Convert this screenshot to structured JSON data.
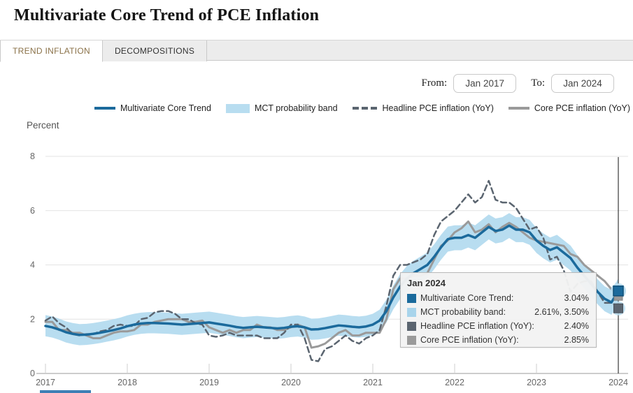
{
  "header": {
    "title": "Multivariate Core Trend of PCE Inflation"
  },
  "tabs": [
    {
      "label": "TREND INFLATION",
      "active": true
    },
    {
      "label": "DECOMPOSITIONS",
      "active": false
    }
  ],
  "controls": {
    "from_label": "From:",
    "from_value": "Jan 2017",
    "to_label": "To:",
    "to_value": "Jan 2024"
  },
  "legend": [
    {
      "label": "Multivariate Core Trend",
      "swatch": "solid-blue-line"
    },
    {
      "label": "MCT probability band",
      "swatch": "light-blue-band"
    },
    {
      "label": "Headline PCE inflation (YoY)",
      "swatch": "dashed-gray-line"
    },
    {
      "label": "Core PCE inflation (YoY)",
      "swatch": "solid-gray-line"
    }
  ],
  "colors": {
    "mct_line": "#1b6a9c",
    "band_fill": "#b8ddf0",
    "headline_line": "#5b6570",
    "core_line": "#9a9a9a",
    "active_tab_text": "#8a7148",
    "grid": "#e3e3e3",
    "axis": "#9a9a9a",
    "crosshair": "#111111"
  },
  "chart_data": {
    "type": "line",
    "title": "Multivariate Core Trend of PCE Inflation",
    "ylabel": "Percent",
    "xlabel": "",
    "ylim": [
      0,
      8
    ],
    "yticks": [
      0,
      2,
      4,
      6,
      8
    ],
    "xticks": [
      "2017",
      "2018",
      "2019",
      "2020",
      "2021",
      "2022",
      "2023",
      "2024"
    ],
    "frequency": "monthly",
    "x_start": "Jan 2017",
    "x_end": "Jan 2024",
    "grid": true,
    "legend_position": "top",
    "crosshair_at": "Jan 2024",
    "series": [
      {
        "name": "Multivariate Core Trend",
        "style": "line",
        "color": "#1b6a9c",
        "width": 3.5,
        "values": [
          1.75,
          1.7,
          1.62,
          1.52,
          1.46,
          1.42,
          1.43,
          1.46,
          1.5,
          1.55,
          1.6,
          1.66,
          1.74,
          1.8,
          1.84,
          1.86,
          1.86,
          1.85,
          1.84,
          1.82,
          1.8,
          1.82,
          1.84,
          1.86,
          1.88,
          1.84,
          1.8,
          1.76,
          1.71,
          1.68,
          1.7,
          1.72,
          1.7,
          1.68,
          1.66,
          1.68,
          1.72,
          1.74,
          1.7,
          1.62,
          1.63,
          1.67,
          1.72,
          1.77,
          1.75,
          1.72,
          1.7,
          1.73,
          1.8,
          1.95,
          2.3,
          2.8,
          3.2,
          3.5,
          3.7,
          3.85,
          4.0,
          4.3,
          4.65,
          4.95,
          5.0,
          5.0,
          5.1,
          5.0,
          5.2,
          5.4,
          5.25,
          5.3,
          5.45,
          5.3,
          5.3,
          5.2,
          4.9,
          4.7,
          4.55,
          4.65,
          4.45,
          4.25,
          3.9,
          3.6,
          3.3,
          3.0,
          2.75,
          2.62,
          3.04
        ]
      },
      {
        "name": "MCT probability band",
        "style": "band",
        "color": "#b8ddf0",
        "upper": [
          2.15,
          2.1,
          2.02,
          1.92,
          1.86,
          1.82,
          1.83,
          1.86,
          1.9,
          1.95,
          2.0,
          2.06,
          2.14,
          2.2,
          2.24,
          2.26,
          2.26,
          2.25,
          2.24,
          2.22,
          2.2,
          2.22,
          2.24,
          2.26,
          2.28,
          2.24,
          2.2,
          2.16,
          2.11,
          2.08,
          2.1,
          2.12,
          2.1,
          2.08,
          2.06,
          2.08,
          2.12,
          2.14,
          2.1,
          2.02,
          2.03,
          2.07,
          2.12,
          2.17,
          2.15,
          2.12,
          2.1,
          2.13,
          2.2,
          2.35,
          2.72,
          3.24,
          3.66,
          3.96,
          4.16,
          4.31,
          4.46,
          4.76,
          5.11,
          5.41,
          5.46,
          5.46,
          5.56,
          5.46,
          5.66,
          5.86,
          5.71,
          5.76,
          5.91,
          5.76,
          5.76,
          5.66,
          5.36,
          5.16,
          5.01,
          5.11,
          4.91,
          4.71,
          4.36,
          4.06,
          3.76,
          3.46,
          3.21,
          3.08,
          3.5
        ],
        "lower": [
          1.37,
          1.32,
          1.24,
          1.14,
          1.08,
          1.04,
          1.05,
          1.08,
          1.12,
          1.17,
          1.22,
          1.28,
          1.36,
          1.42,
          1.46,
          1.48,
          1.48,
          1.47,
          1.46,
          1.44,
          1.42,
          1.44,
          1.46,
          1.48,
          1.5,
          1.46,
          1.42,
          1.38,
          1.33,
          1.3,
          1.32,
          1.34,
          1.32,
          1.3,
          1.28,
          1.3,
          1.34,
          1.36,
          1.32,
          1.24,
          1.25,
          1.29,
          1.34,
          1.39,
          1.37,
          1.34,
          1.32,
          1.35,
          1.42,
          1.55,
          1.88,
          2.36,
          2.74,
          3.04,
          3.24,
          3.39,
          3.54,
          3.84,
          4.19,
          4.49,
          4.54,
          4.54,
          4.64,
          4.54,
          4.74,
          4.94,
          4.79,
          4.84,
          4.99,
          4.84,
          4.84,
          4.74,
          4.44,
          4.24,
          4.09,
          4.19,
          3.99,
          3.79,
          3.44,
          3.14,
          2.84,
          2.54,
          2.29,
          2.16,
          2.61
        ]
      },
      {
        "name": "Headline PCE inflation (YoY)",
        "style": "dashed",
        "color": "#5b6570",
        "width": 2.5,
        "values": [
          1.95,
          2.1,
          1.85,
          1.7,
          1.45,
          1.4,
          1.45,
          1.45,
          1.55,
          1.6,
          1.75,
          1.8,
          1.75,
          1.75,
          2.0,
          2.05,
          2.25,
          2.3,
          2.3,
          2.2,
          2.0,
          2.0,
          1.85,
          1.8,
          1.4,
          1.35,
          1.4,
          1.5,
          1.4,
          1.4,
          1.4,
          1.4,
          1.3,
          1.3,
          1.3,
          1.5,
          1.8,
          1.8,
          1.3,
          0.5,
          0.45,
          0.9,
          1.0,
          1.2,
          1.4,
          1.2,
          1.1,
          1.3,
          1.4,
          1.6,
          2.5,
          3.6,
          4.0,
          4.0,
          4.1,
          4.2,
          4.4,
          5.1,
          5.6,
          5.8,
          6.0,
          6.3,
          6.6,
          6.3,
          6.5,
          7.1,
          6.4,
          6.3,
          6.3,
          6.1,
          5.7,
          5.3,
          5.4,
          5.0,
          4.2,
          4.3,
          3.8,
          3.0,
          3.3,
          3.4,
          3.4,
          3.0,
          2.6,
          2.6,
          2.4
        ]
      },
      {
        "name": "Core PCE inflation (YoY)",
        "style": "line",
        "color": "#9a9a9a",
        "width": 3,
        "values": [
          1.9,
          1.9,
          1.6,
          1.6,
          1.5,
          1.5,
          1.4,
          1.3,
          1.3,
          1.4,
          1.5,
          1.55,
          1.55,
          1.6,
          1.8,
          1.8,
          1.9,
          1.95,
          2.0,
          2.0,
          2.0,
          1.9,
          1.9,
          1.95,
          1.7,
          1.6,
          1.5,
          1.6,
          1.5,
          1.6,
          1.6,
          1.8,
          1.7,
          1.7,
          1.6,
          1.6,
          1.7,
          1.8,
          1.7,
          0.95,
          1.0,
          1.1,
          1.3,
          1.5,
          1.6,
          1.4,
          1.4,
          1.5,
          1.5,
          1.5,
          2.0,
          3.1,
          3.5,
          3.5,
          3.6,
          3.6,
          3.7,
          4.2,
          4.7,
          4.9,
          5.2,
          5.35,
          5.6,
          5.2,
          5.3,
          5.5,
          5.2,
          5.4,
          5.55,
          5.4,
          5.2,
          5.0,
          4.9,
          4.85,
          4.8,
          4.75,
          4.7,
          4.4,
          4.3,
          4.0,
          3.8,
          3.6,
          3.4,
          3.1,
          2.85
        ]
      }
    ],
    "end_values": {
      "mct": 3.04,
      "band_lower": 2.61,
      "band_upper": 3.5,
      "headline": 2.4,
      "core": 2.85
    }
  },
  "tooltip": {
    "title": "Jan 2024",
    "rows": [
      {
        "label": "Multivariate Core Trend:",
        "value": "3.04%",
        "swatch_color": "#1b6a9c"
      },
      {
        "label": "MCT probability band:",
        "value": "2.61%, 3.50%",
        "swatch_color": "#a8d4eb"
      },
      {
        "label": "Headline PCE inflation (YoY):",
        "value": "2.40%",
        "swatch_color": "#5b6570"
      },
      {
        "label": "Core PCE inflation (YoY):",
        "value": "2.85%",
        "swatch_color": "#9a9a9a"
      }
    ]
  }
}
